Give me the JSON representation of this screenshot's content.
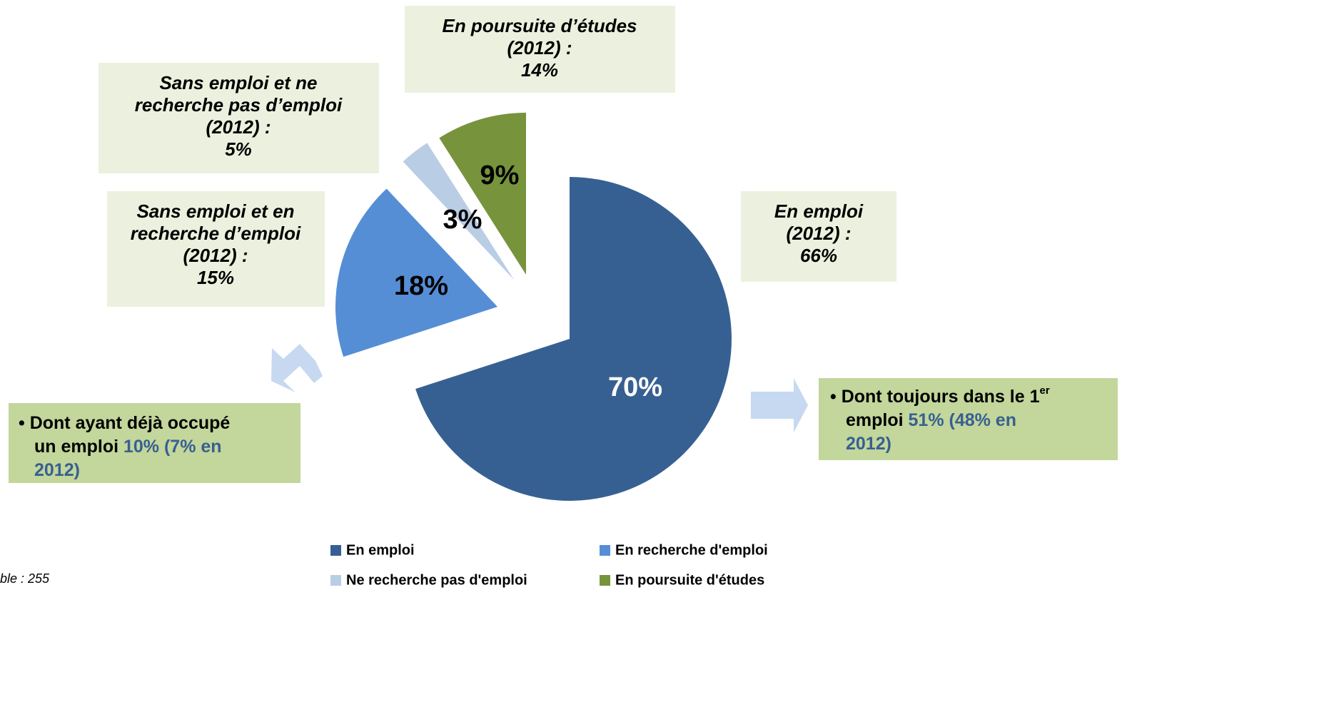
{
  "chart_data": {
    "type": "pie",
    "categories": [
      "En emploi",
      "En recherche d'emploi",
      "Ne recherche pas d'emploi",
      "En poursuite d'études"
    ],
    "values": [
      70,
      18,
      3,
      9
    ],
    "value_labels": [
      "70%",
      "18%",
      "3%",
      "9%"
    ],
    "colors": [
      "#376092",
      "#558ed5",
      "#b9cde5",
      "#77933c"
    ],
    "label_colors": [
      "#ffffff",
      "#000000",
      "#000000",
      "#000000"
    ],
    "legend": "bottom",
    "annotations": [
      {
        "lines": [
          "En poursuite d’études",
          "(2012) :",
          "14%"
        ]
      },
      {
        "lines": [
          "Sans emploi et ne",
          "recherche pas d’emploi",
          "(2012) :",
          "5%"
        ]
      },
      {
        "lines": [
          "Sans emploi et en",
          "recherche d’emploi",
          "(2012) :",
          "15%"
        ]
      },
      {
        "lines": [
          "En emploi",
          "(2012) :",
          "66%"
        ]
      }
    ],
    "notes": [
      {
        "lines": [
          [
            {
              "text": "• Dont ayant déjà occupé"
            }
          ],
          [
            {
              "text": "un emploi "
            },
            {
              "text": "10% (7% en",
              "highlight": true
            }
          ],
          [
            {
              "text": "2012)",
              "highlight": true
            }
          ]
        ]
      },
      {
        "lines": [
          [
            {
              "text": "• Dont toujours dans le 1"
            },
            {
              "text": "er",
              "sup": true
            }
          ],
          [
            {
              "text": "emploi  "
            },
            {
              "text": "51% (48% en",
              "highlight": true
            }
          ],
          [
            {
              "text": "2012)",
              "highlight": true
            }
          ]
        ]
      }
    ],
    "footnote": "ble : 255"
  }
}
